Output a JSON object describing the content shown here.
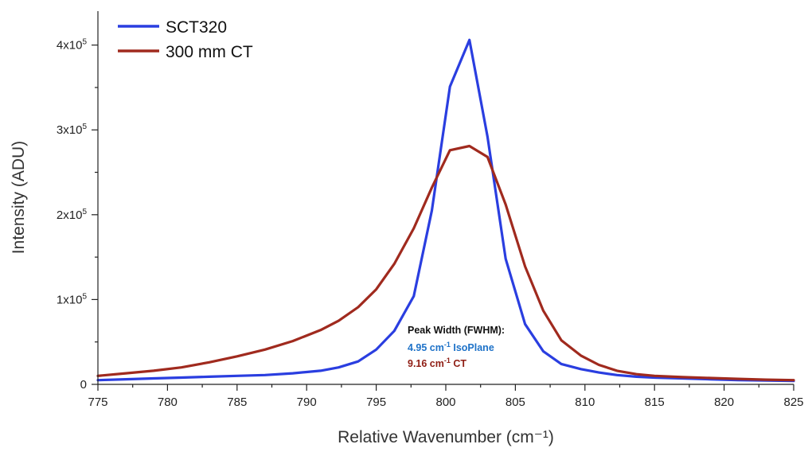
{
  "chart_data": {
    "type": "line",
    "xlabel": "Relative Wavenumber (cm⁻¹)",
    "ylabel": "Intensity (ADU)",
    "xlim": [
      775,
      825
    ],
    "ylim": [
      0,
      440000
    ],
    "xticks": [
      775,
      780,
      785,
      790,
      795,
      800,
      805,
      810,
      815,
      820,
      825
    ],
    "yticks": [
      {
        "value": 0,
        "mantissa": "0",
        "exp": ""
      },
      {
        "value": 100000,
        "mantissa": "1x10",
        "exp": "5"
      },
      {
        "value": 200000,
        "mantissa": "2x10",
        "exp": "5"
      },
      {
        "value": 300000,
        "mantissa": "3x10",
        "exp": "5"
      },
      {
        "value": 400000,
        "mantissa": "4x10",
        "exp": "5"
      }
    ],
    "grid": false,
    "legend_position": "top-left",
    "series": [
      {
        "name": "SCT320",
        "color": "#2a3ee0",
        "x": [
          775,
          777,
          779,
          781,
          783,
          785,
          787,
          789,
          791,
          792.3,
          793.7,
          795,
          796.3,
          797.7,
          799,
          800.3,
          801.7,
          803,
          804.3,
          805.7,
          807,
          808.3,
          809.7,
          811,
          812.3,
          813.7,
          815,
          817,
          819,
          821,
          823,
          825
        ],
        "y": [
          5000,
          6000,
          7000,
          8000,
          9000,
          10000,
          11000,
          13000,
          16000,
          20000,
          27000,
          41000,
          63000,
          104000,
          205000,
          351000,
          406000,
          292000,
          148000,
          71000,
          39000,
          24000,
          18000,
          14000,
          11000,
          9000,
          8000,
          7000,
          6000,
          5000,
          4500,
          4000
        ]
      },
      {
        "name": "300 mm CT",
        "color": "#a02a1e",
        "x": [
          775,
          777,
          779,
          781,
          783,
          785,
          787,
          789,
          791,
          792.3,
          793.7,
          795,
          796.3,
          797.7,
          799,
          800.3,
          801.7,
          803,
          804.3,
          805.7,
          807,
          808.3,
          809.7,
          811,
          812.3,
          813.7,
          815,
          817,
          819,
          821,
          823,
          825
        ],
        "y": [
          10000,
          13000,
          16000,
          20000,
          26000,
          33000,
          41000,
          51000,
          64000,
          75000,
          91000,
          112000,
          142000,
          184000,
          232000,
          276000,
          281000,
          268000,
          212000,
          139000,
          87000,
          52000,
          34000,
          23000,
          16000,
          12000,
          10000,
          8500,
          7500,
          6500,
          5500,
          5000
        ]
      }
    ],
    "annotation": {
      "title": "Peak Width (FWHM):",
      "lines": [
        {
          "value": "4.95 cm",
          "exp": "-1",
          "label": " IsoPlane",
          "color": "#1e72c8"
        },
        {
          "value": "9.16 cm",
          "exp": "-1",
          "label": " CT",
          "color": "#8f1d14"
        }
      ]
    }
  }
}
